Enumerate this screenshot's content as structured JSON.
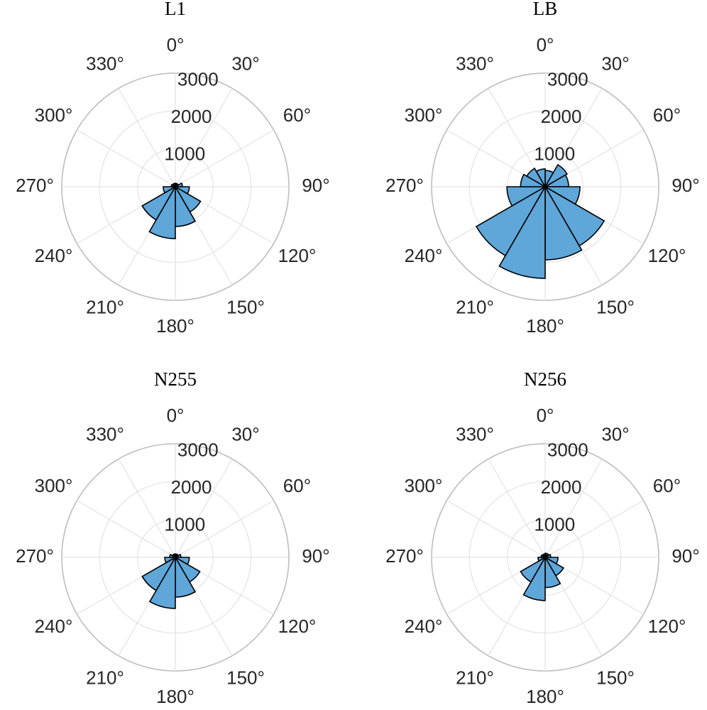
{
  "chart_data": [
    {
      "type": "polar_histogram",
      "title": "L1",
      "color": "#5fa6d9",
      "bins": [
        0,
        30,
        60,
        90,
        120,
        150,
        180,
        210,
        240,
        270,
        300,
        330,
        360
      ],
      "values": [
        90,
        90,
        190,
        370,
        770,
        1050,
        1370,
        1010,
        320,
        110,
        90,
        90
      ],
      "rlim": [
        0,
        3000
      ],
      "rticks": [
        1000,
        2000,
        3000
      ],
      "thetaticks": [
        {
          "value": 0,
          "label": "0°"
        },
        {
          "value": 30,
          "label": "30°"
        },
        {
          "value": 60,
          "label": "60°"
        },
        {
          "value": 90,
          "label": "90°"
        },
        {
          "value": 120,
          "label": "120°"
        },
        {
          "value": 150,
          "label": "150°"
        },
        {
          "value": 180,
          "label": "180°"
        },
        {
          "value": 210,
          "label": "210°"
        },
        {
          "value": 240,
          "label": "240°"
        },
        {
          "value": 270,
          "label": "270°"
        },
        {
          "value": 300,
          "label": "300°"
        },
        {
          "value": 330,
          "label": "330°"
        }
      ]
    },
    {
      "type": "polar_histogram",
      "title": "LB",
      "color": "#5fa6d9",
      "bins": [
        0,
        30,
        60,
        90,
        120,
        150,
        180,
        210,
        240,
        270,
        300,
        330,
        360
      ],
      "values": [
        430,
        670,
        620,
        920,
        1800,
        1930,
        2420,
        2100,
        1010,
        650,
        560,
        470
      ],
      "rlim": [
        0,
        3000
      ],
      "rticks": [
        1000,
        2000,
        3000
      ],
      "thetaticks": [
        {
          "value": 0,
          "label": "0°"
        },
        {
          "value": 30,
          "label": "30°"
        },
        {
          "value": 60,
          "label": "60°"
        },
        {
          "value": 90,
          "label": "90°"
        },
        {
          "value": 120,
          "label": "120°"
        },
        {
          "value": 150,
          "label": "150°"
        },
        {
          "value": 180,
          "label": "180°"
        },
        {
          "value": 210,
          "label": "210°"
        },
        {
          "value": 240,
          "label": "240°"
        },
        {
          "value": 270,
          "label": "270°"
        },
        {
          "value": 300,
          "label": "300°"
        },
        {
          "value": 330,
          "label": "330°"
        }
      ]
    },
    {
      "type": "polar_histogram",
      "title": "N255",
      "color": "#5fa6d9",
      "bins": [
        0,
        30,
        60,
        90,
        120,
        150,
        180,
        210,
        240,
        270,
        300,
        330,
        360
      ],
      "values": [
        90,
        90,
        150,
        370,
        750,
        1050,
        1350,
        1010,
        280,
        150,
        90,
        90
      ],
      "rlim": [
        0,
        3000
      ],
      "rticks": [
        1000,
        2000,
        3000
      ],
      "thetaticks": [
        {
          "value": 0,
          "label": "0°"
        },
        {
          "value": 30,
          "label": "30°"
        },
        {
          "value": 60,
          "label": "60°"
        },
        {
          "value": 90,
          "label": "90°"
        },
        {
          "value": 120,
          "label": "120°"
        },
        {
          "value": 150,
          "label": "150°"
        },
        {
          "value": 180,
          "label": "180°"
        },
        {
          "value": 210,
          "label": "210°"
        },
        {
          "value": 240,
          "label": "240°"
        },
        {
          "value": 270,
          "label": "270°"
        },
        {
          "value": 300,
          "label": "300°"
        },
        {
          "value": 330,
          "label": "330°"
        }
      ]
    },
    {
      "type": "polar_histogram",
      "title": "N256",
      "color": "#5fa6d9",
      "bins": [
        0,
        30,
        60,
        90,
        120,
        150,
        180,
        210,
        240,
        270,
        300,
        330,
        360
      ],
      "values": [
        110,
        110,
        150,
        340,
        560,
        800,
        1140,
        750,
        190,
        110,
        90,
        90
      ],
      "rlim": [
        0,
        3000
      ],
      "rticks": [
        1000,
        2000,
        3000
      ],
      "thetaticks": [
        {
          "value": 0,
          "label": "0°"
        },
        {
          "value": 30,
          "label": "30°"
        },
        {
          "value": 60,
          "label": "60°"
        },
        {
          "value": 90,
          "label": "90°"
        },
        {
          "value": 120,
          "label": "120°"
        },
        {
          "value": 150,
          "label": "150°"
        },
        {
          "value": 180,
          "label": "180°"
        },
        {
          "value": 210,
          "label": "210°"
        },
        {
          "value": 240,
          "label": "240°"
        },
        {
          "value": 270,
          "label": "270°"
        },
        {
          "value": 300,
          "label": "300°"
        },
        {
          "value": 330,
          "label": "330°"
        }
      ]
    }
  ]
}
